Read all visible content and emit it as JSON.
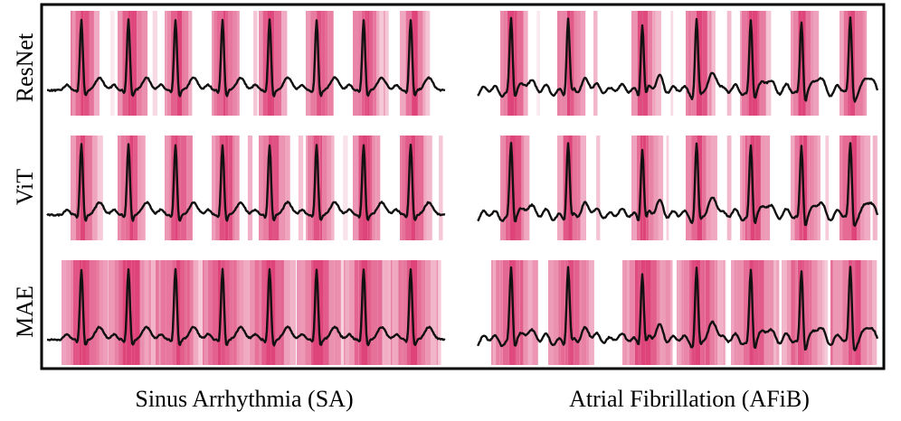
{
  "rows": [
    "ResNet",
    "ViT",
    "MAE"
  ],
  "columns": [
    "Sinus Arrhythmia (SA)",
    "Atrial Fibrillation (AFiB)"
  ]
}
